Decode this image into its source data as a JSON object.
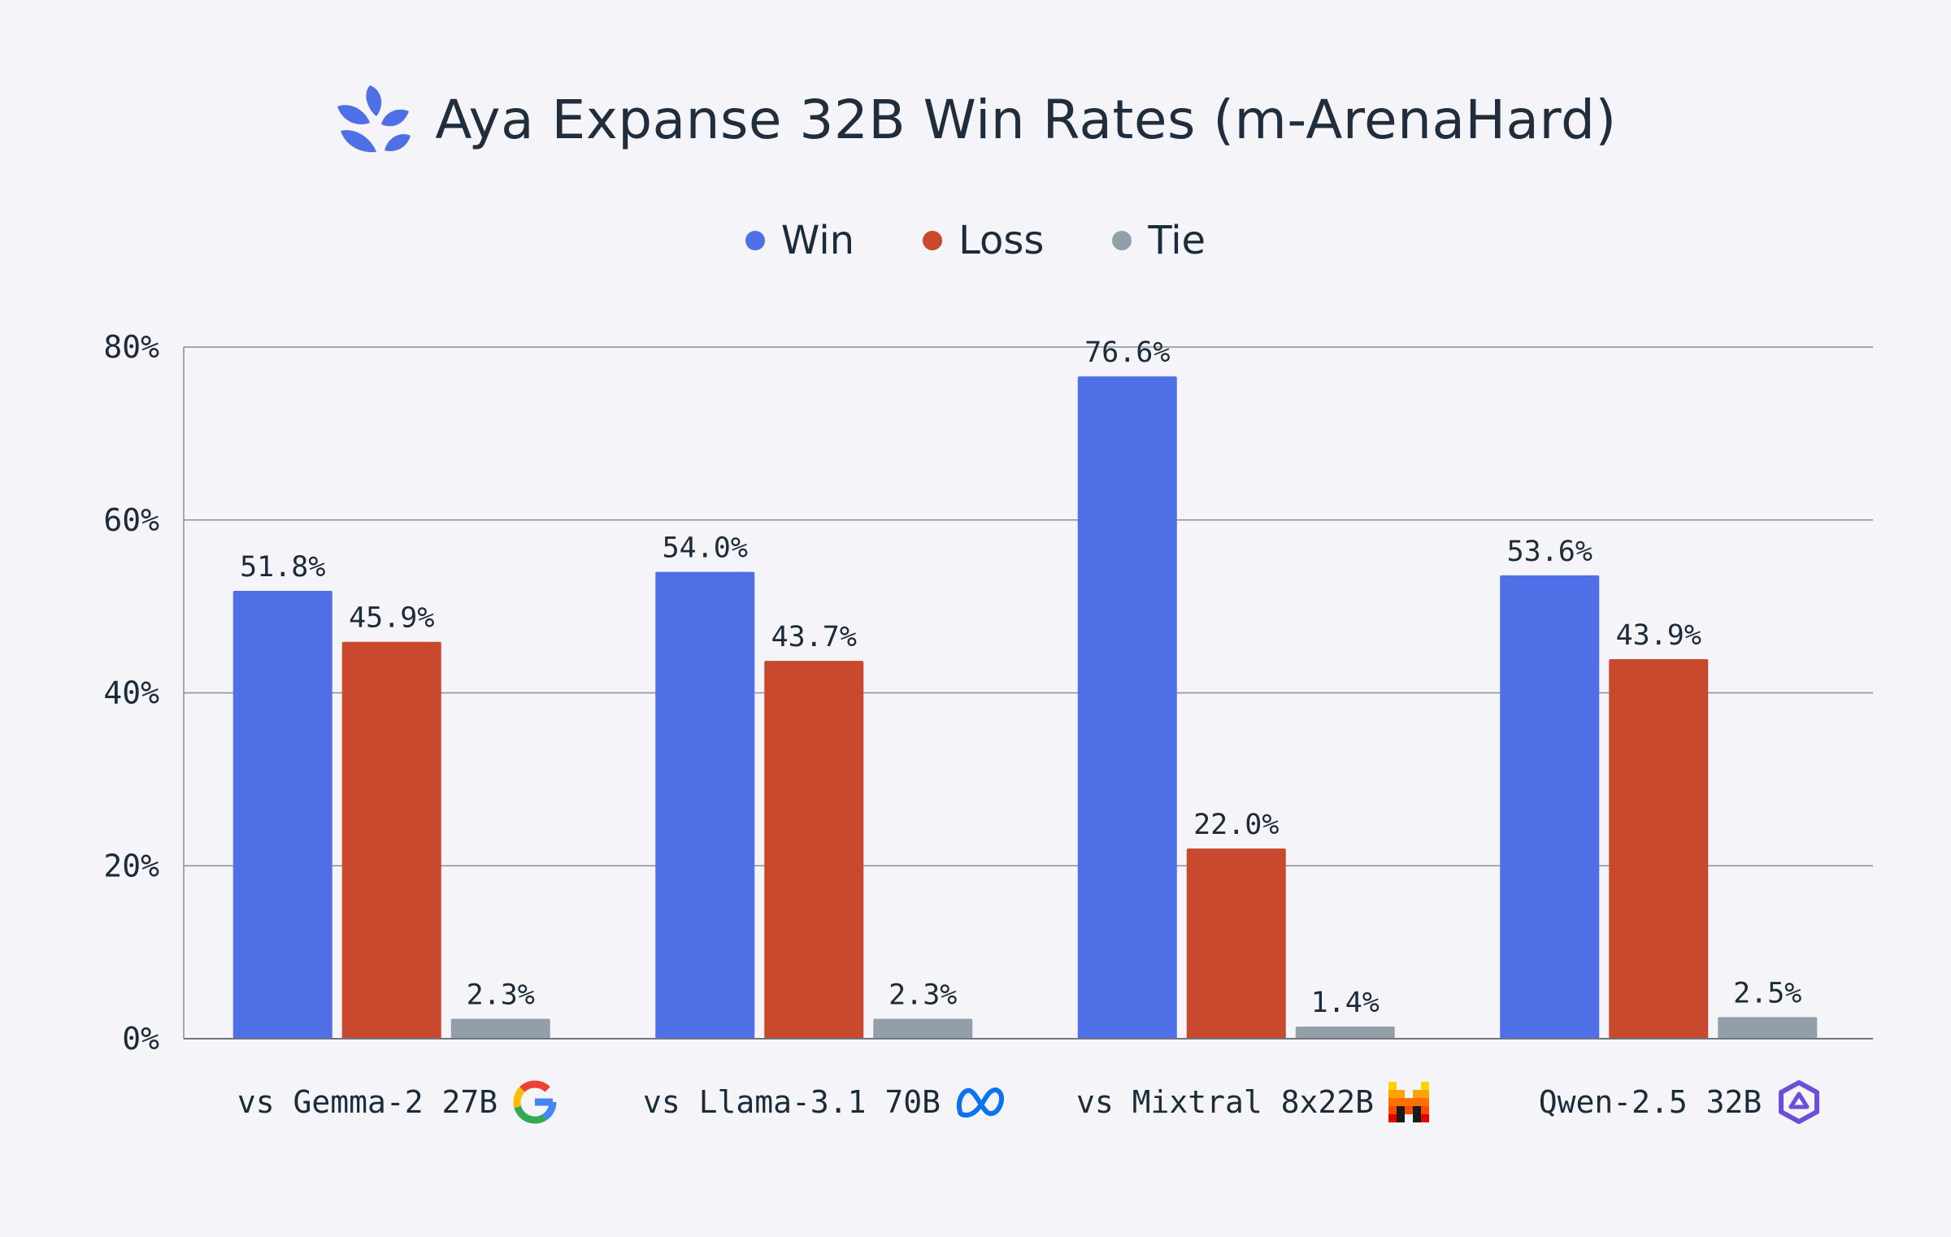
{
  "title": "Aya Expanse 32B Win Rates (m-ArenaHard)",
  "legend": [
    {
      "name": "Win",
      "color": "#4e6fe6"
    },
    {
      "name": "Loss",
      "color": "#c8492d"
    },
    {
      "name": "Tie",
      "color": "#939fa8"
    }
  ],
  "icons": {
    "title": "aya-leaf-logo-icon",
    "categories": [
      "google-logo-icon",
      "meta-logo-icon",
      "mistral-logo-icon",
      "qwen-logo-icon"
    ]
  },
  "chart_data": {
    "type": "bar",
    "title": "Aya Expanse 32B Win Rates (m-ArenaHard)",
    "categories": [
      "vs Gemma-2 27B",
      "vs Llama-3.1 70B",
      "vs Mixtral 8x22B",
      "Qwen-2.5 32B"
    ],
    "series": [
      {
        "name": "Win",
        "values": [
          51.8,
          54.0,
          76.6,
          53.6
        ],
        "labels": [
          "51.8%",
          "54.0%",
          "76.6%",
          "53.6%"
        ]
      },
      {
        "name": "Loss",
        "values": [
          45.9,
          43.7,
          22.0,
          43.9
        ],
        "labels": [
          "45.9%",
          "43.7%",
          "22.0%",
          "43.9%"
        ]
      },
      {
        "name": "Tie",
        "values": [
          2.3,
          2.3,
          1.4,
          2.5
        ],
        "labels": [
          "2.3%",
          "2.3%",
          "1.4%",
          "2.5%"
        ]
      }
    ],
    "yticks": [
      0,
      20,
      40,
      60,
      80
    ],
    "ytick_labels": [
      "0%",
      "20%",
      "40%",
      "60%",
      "80%"
    ],
    "ylim": [
      0,
      80
    ],
    "grid": true,
    "legend_position": "top-center",
    "xlabel": "",
    "ylabel": ""
  }
}
